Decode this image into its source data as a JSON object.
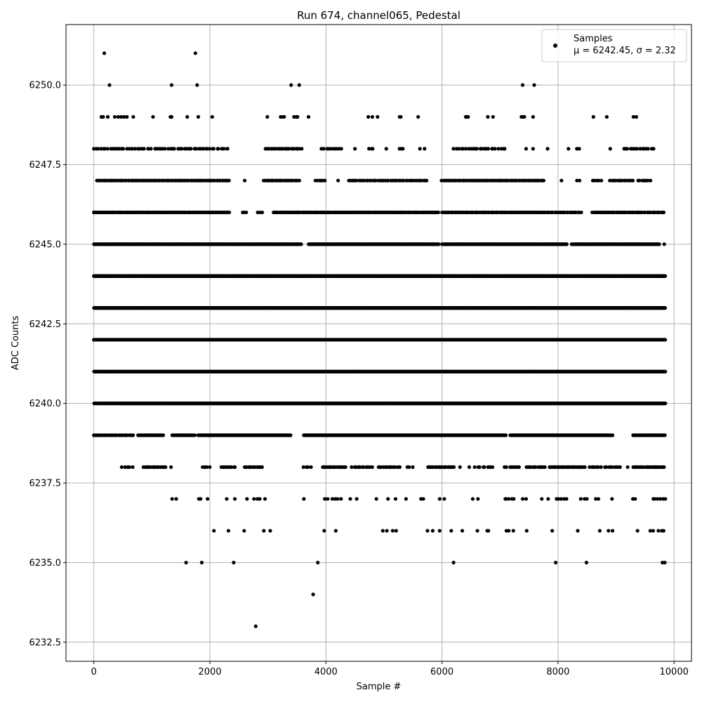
{
  "chart_data": {
    "type": "scatter",
    "title": "Run 674, channel065, Pedestal",
    "xlabel": "Sample #",
    "ylabel": "ADC Counts",
    "xlim": [
      -480,
      10300
    ],
    "ylim": [
      6231.9,
      6251.9
    ],
    "xticks": [
      0,
      2000,
      4000,
      6000,
      8000,
      10000
    ],
    "xtick_labels": [
      "0",
      "2000",
      "4000",
      "6000",
      "8000",
      "10000"
    ],
    "yticks": [
      6232.5,
      6235.0,
      6237.5,
      6240.0,
      6242.5,
      6245.0,
      6247.5,
      6250.0
    ],
    "ytick_labels": [
      "6232.5",
      "6235.0",
      "6237.5",
      "6240.0",
      "6242.5",
      "6245.0",
      "6247.5",
      "6250.0"
    ],
    "grid": true,
    "legend": {
      "position": "top-right",
      "label": "Samples",
      "stats": "μ = 6242.45, σ = 2.32"
    },
    "marker_color": "#000000",
    "samples": 9850,
    "levels": [
      {
        "y": 6251,
        "x": [
          180,
          1750
        ]
      },
      {
        "y": 6250,
        "x": [
          270,
          1340,
          1780,
          3400,
          3540,
          7390,
          7590
        ]
      },
      {
        "y": 6249,
        "x": [
          130,
          160,
          240,
          360,
          420,
          470,
          520,
          570,
          680,
          1020,
          1320,
          1340,
          1610,
          1800,
          2040,
          2990,
          3220,
          3260,
          3280,
          3450,
          3490,
          3510,
          3700,
          4730,
          4800,
          4890,
          5270,
          5290,
          5590,
          6410,
          6430,
          6450,
          6790,
          6880,
          7370,
          7390,
          7420,
          7570,
          8610,
          8840,
          9300,
          9350
        ]
      },
      {
        "y": 6248,
        "x": [
          {
            "from": 0,
            "to": 2350,
            "step": 40
          },
          {
            "from": 2950,
            "to": 3600,
            "step": 30
          },
          {
            "from": 3930,
            "to": 4250,
            "step": 40
          },
          4500,
          {
            "from": 4740,
            "to": 4820,
            "step": 40
          },
          5040,
          {
            "from": 5260,
            "to": 5340,
            "step": 40
          },
          5620,
          5700,
          {
            "from": 6210,
            "to": 7100,
            "step": 40
          },
          7450,
          7570,
          7820,
          8180,
          {
            "from": 8330,
            "to": 8380,
            "step": 40
          },
          8900,
          {
            "from": 9130,
            "to": 9660,
            "step": 40
          }
        ]
      },
      {
        "y": 6247,
        "x": [
          {
            "from": 60,
            "to": 2350,
            "step": 25
          },
          2600,
          {
            "from": 2930,
            "to": 3550,
            "step": 25
          },
          {
            "from": 3830,
            "to": 3990,
            "step": 30
          },
          4210,
          {
            "from": 4390,
            "to": 5750,
            "step": 30
          },
          {
            "from": 6000,
            "to": 7750,
            "step": 25
          },
          8060,
          {
            "from": 8330,
            "to": 8380,
            "step": 40
          },
          {
            "from": 8600,
            "to": 8760,
            "step": 40
          },
          {
            "from": 8900,
            "to": 9300,
            "step": 30
          },
          {
            "from": 9380,
            "to": 9600,
            "step": 30
          }
        ]
      },
      {
        "y": 6246,
        "x": [
          {
            "from": 0,
            "to": 2350,
            "step": 20
          },
          {
            "from": 2560,
            "to": 2620,
            "step": 30
          },
          {
            "from": 2830,
            "to": 2900,
            "step": 30
          },
          {
            "from": 3100,
            "to": 4200,
            "step": 20
          },
          {
            "from": 4220,
            "to": 5940,
            "step": 20
          },
          {
            "from": 6000,
            "to": 7800,
            "step": 20
          },
          {
            "from": 7820,
            "to": 8400,
            "step": 25
          },
          {
            "from": 8600,
            "to": 9840,
            "step": 25
          }
        ]
      },
      {
        "y": 6245,
        "x": [
          {
            "from": 0,
            "to": 3580,
            "step": 12
          },
          {
            "from": 3700,
            "to": 5950,
            "step": 12
          },
          {
            "from": 6000,
            "to": 8150,
            "step": 12
          },
          {
            "from": 8240,
            "to": 9750,
            "step": 12
          },
          9830
        ]
      },
      {
        "y": 6244,
        "x": [
          {
            "from": 0,
            "to": 9850,
            "step": 8
          }
        ]
      },
      {
        "y": 6243,
        "x": [
          {
            "from": 0,
            "to": 9850,
            "step": 8
          }
        ]
      },
      {
        "y": 6242,
        "x": [
          {
            "from": 0,
            "to": 9850,
            "step": 8
          }
        ]
      },
      {
        "y": 6241,
        "x": [
          {
            "from": 0,
            "to": 9850,
            "step": 9
          }
        ]
      },
      {
        "y": 6240,
        "x": [
          {
            "from": 0,
            "to": 480,
            "step": 15
          },
          {
            "from": 480,
            "to": 9850,
            "step": 10
          }
        ]
      },
      {
        "y": 6239,
        "x": [
          {
            "from": 0,
            "to": 680,
            "step": 25
          },
          {
            "from": 760,
            "to": 1200,
            "step": 15
          },
          {
            "from": 1350,
            "to": 1750,
            "step": 15
          },
          {
            "from": 1800,
            "to": 3400,
            "step": 12
          },
          {
            "from": 3620,
            "to": 7100,
            "step": 12
          },
          {
            "from": 7180,
            "to": 8950,
            "step": 12
          },
          {
            "from": 9300,
            "to": 9850,
            "step": 15
          }
        ]
      },
      {
        "y": 6238,
        "x": [
          {
            "from": 490,
            "to": 640,
            "step": 40
          },
          670,
          {
            "from": 850,
            "to": 1250,
            "step": 30
          },
          1330,
          {
            "from": 1880,
            "to": 2000,
            "step": 40
          },
          {
            "from": 2200,
            "to": 2450,
            "step": 30
          },
          {
            "from": 2600,
            "to": 2900,
            "step": 30
          },
          {
            "from": 3620,
            "to": 3760,
            "step": 40
          },
          {
            "from": 3940,
            "to": 4350,
            "step": 25
          },
          {
            "from": 4450,
            "to": 4800,
            "step": 35
          },
          {
            "from": 4900,
            "to": 5280,
            "step": 30
          },
          {
            "from": 5400,
            "to": 5500,
            "step": 40
          },
          {
            "from": 5750,
            "to": 6200,
            "step": 25
          },
          6310,
          6470,
          {
            "from": 6580,
            "to": 6780,
            "step": 40
          },
          {
            "from": 6800,
            "to": 6900,
            "step": 40
          },
          {
            "from": 7090,
            "to": 7350,
            "step": 35
          },
          {
            "from": 7450,
            "to": 7800,
            "step": 30
          },
          {
            "from": 7850,
            "to": 8450,
            "step": 25
          },
          {
            "from": 8550,
            "to": 8750,
            "step": 30
          },
          {
            "from": 8800,
            "to": 9100,
            "step": 35
          },
          9200,
          {
            "from": 9300,
            "to": 9840,
            "step": 25
          }
        ]
      },
      {
        "y": 6237,
        "x": [
          1350,
          1420,
          1810,
          1840,
          1960,
          2290,
          2430,
          2640,
          2760,
          2820,
          2860,
          2950,
          3620,
          3980,
          4030,
          4110,
          4160,
          4200,
          4260,
          4420,
          4530,
          4870,
          5070,
          5200,
          5380,
          {
            "from": 5650,
            "to": 5720,
            "step": 40
          },
          5960,
          6040,
          6530,
          6620,
          {
            "from": 7080,
            "to": 7240,
            "step": 40
          },
          7390,
          7450,
          7720,
          7830,
          {
            "from": 7980,
            "to": 8150,
            "step": 40
          },
          {
            "from": 8400,
            "to": 8500,
            "step": 40
          },
          {
            "from": 8640,
            "to": 8700,
            "step": 40
          },
          8930,
          9290,
          9330,
          {
            "from": 9640,
            "to": 9840,
            "step": 40
          }
        ]
      },
      {
        "y": 6236,
        "x": [
          2070,
          2320,
          2590,
          2930,
          3040,
          3970,
          4170,
          4980,
          5050,
          5150,
          5210,
          5750,
          5840,
          5960,
          6160,
          6350,
          6610,
          6780,
          6800,
          7110,
          7150,
          7230,
          7460,
          7900,
          8340,
          8720,
          8870,
          8940,
          9370,
          9590,
          9640,
          9730,
          9790,
          9820
        ]
      },
      {
        "y": 6235,
        "x": [
          1590,
          1860,
          2410,
          3860,
          6200,
          7960,
          8490,
          9800,
          9840
        ]
      },
      {
        "y": 6234,
        "x": [
          3780
        ]
      },
      {
        "y": 6233,
        "x": [
          2790
        ]
      }
    ]
  }
}
